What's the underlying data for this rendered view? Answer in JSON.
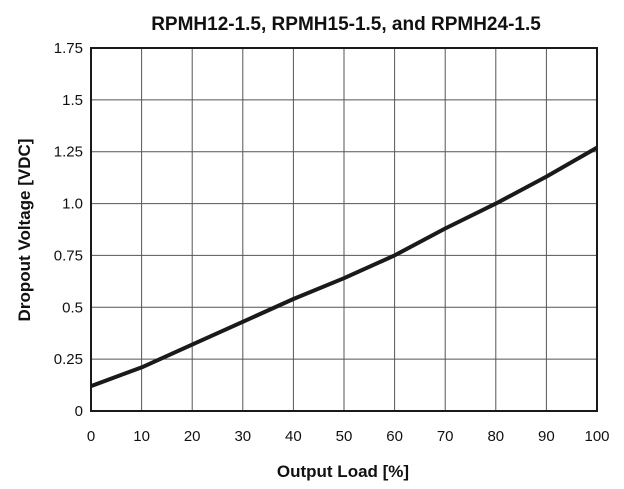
{
  "chart_data": {
    "type": "line",
    "title": "RPMH12-1.5, RPMH15-1.5, and RPMH24-1.5",
    "xlabel": "Output Load [%]",
    "ylabel": "Dropout Voltage [VDC]",
    "xlim": [
      0,
      100
    ],
    "ylim": [
      0,
      1.75
    ],
    "x_ticks": [
      "0",
      "10",
      "20",
      "30",
      "40",
      "50",
      "60",
      "70",
      "80",
      "90",
      "100"
    ],
    "y_ticks": [
      "0",
      "0.25",
      "0.5",
      "0.75",
      "1.0",
      "1.25",
      "1.5",
      "1.75"
    ],
    "grid": true,
    "series": [
      {
        "color": "#1a1a1a",
        "x": [
          0,
          10,
          20,
          30,
          40,
          50,
          60,
          70,
          80,
          90,
          100
        ],
        "y": [
          0.12,
          0.21,
          0.32,
          0.43,
          0.54,
          0.64,
          0.75,
          0.88,
          1.0,
          1.13,
          1.27
        ]
      }
    ]
  }
}
